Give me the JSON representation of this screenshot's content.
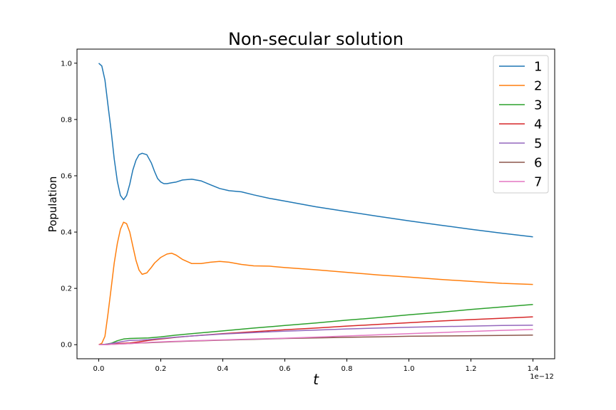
{
  "chart_data": {
    "type": "line",
    "title": "Non-secular solution",
    "xlabel": "t",
    "ylabel": "Population",
    "x_offset_text": "1e−12",
    "xlim": [
      -0.07,
      1.47
    ],
    "ylim": [
      -0.05,
      1.05
    ],
    "x_ticks": [
      0.0,
      0.2,
      0.4,
      0.6,
      0.8,
      1.0,
      1.2,
      1.4
    ],
    "x_tick_labels": [
      "0.0",
      "0.2",
      "0.4",
      "0.6",
      "0.8",
      "1.0",
      "1.2",
      "1.4"
    ],
    "y_ticks": [
      0.0,
      0.2,
      0.4,
      0.6,
      0.8,
      1.0
    ],
    "y_tick_labels": [
      "0.0",
      "0.2",
      "0.4",
      "0.6",
      "0.8",
      "1.0"
    ],
    "grid": false,
    "legend_position": "top-right",
    "series": [
      {
        "name": "1",
        "color": "#1f77b4",
        "x": [
          0.0,
          0.01,
          0.02,
          0.03,
          0.04,
          0.05,
          0.06,
          0.07,
          0.08,
          0.09,
          0.1,
          0.11,
          0.12,
          0.13,
          0.14,
          0.155,
          0.17,
          0.18,
          0.19,
          0.2,
          0.21,
          0.22,
          0.235,
          0.25,
          0.27,
          0.3,
          0.33,
          0.36,
          0.39,
          0.42,
          0.46,
          0.5,
          0.55,
          0.6,
          0.7,
          0.8,
          0.9,
          1.0,
          1.1,
          1.2,
          1.3,
          1.4
        ],
        "y": [
          1.0,
          0.99,
          0.94,
          0.85,
          0.76,
          0.66,
          0.58,
          0.53,
          0.515,
          0.53,
          0.57,
          0.62,
          0.655,
          0.675,
          0.68,
          0.675,
          0.645,
          0.615,
          0.59,
          0.578,
          0.572,
          0.572,
          0.575,
          0.578,
          0.585,
          0.588,
          0.582,
          0.568,
          0.555,
          0.547,
          0.543,
          0.532,
          0.52,
          0.51,
          0.49,
          0.473,
          0.456,
          0.44,
          0.425,
          0.41,
          0.396,
          0.383
        ]
      },
      {
        "name": "2",
        "color": "#ff7f0e",
        "x": [
          0.0,
          0.01,
          0.02,
          0.03,
          0.04,
          0.05,
          0.06,
          0.07,
          0.08,
          0.09,
          0.1,
          0.11,
          0.12,
          0.13,
          0.14,
          0.155,
          0.17,
          0.18,
          0.2,
          0.22,
          0.235,
          0.25,
          0.27,
          0.3,
          0.33,
          0.36,
          0.39,
          0.42,
          0.46,
          0.5,
          0.55,
          0.6,
          0.7,
          0.8,
          0.9,
          1.0,
          1.1,
          1.2,
          1.3,
          1.4
        ],
        "y": [
          0.0,
          0.005,
          0.03,
          0.11,
          0.2,
          0.29,
          0.36,
          0.41,
          0.435,
          0.43,
          0.4,
          0.35,
          0.3,
          0.265,
          0.25,
          0.255,
          0.275,
          0.29,
          0.31,
          0.322,
          0.325,
          0.318,
          0.303,
          0.288,
          0.288,
          0.293,
          0.296,
          0.293,
          0.285,
          0.28,
          0.279,
          0.274,
          0.266,
          0.257,
          0.248,
          0.24,
          0.232,
          0.225,
          0.218,
          0.214
        ]
      },
      {
        "name": "3",
        "color": "#2ca02c",
        "x": [
          0.0,
          0.02,
          0.04,
          0.06,
          0.08,
          0.1,
          0.13,
          0.16,
          0.2,
          0.25,
          0.3,
          0.4,
          0.5,
          0.6,
          0.7,
          0.8,
          0.9,
          1.0,
          1.1,
          1.2,
          1.3,
          1.4
        ],
        "y": [
          0.0,
          0.001,
          0.005,
          0.014,
          0.02,
          0.022,
          0.023,
          0.024,
          0.028,
          0.034,
          0.039,
          0.049,
          0.059,
          0.068,
          0.077,
          0.087,
          0.096,
          0.106,
          0.115,
          0.125,
          0.134,
          0.143
        ]
      },
      {
        "name": "4",
        "color": "#d62728",
        "x": [
          0.0,
          0.02,
          0.04,
          0.06,
          0.08,
          0.1,
          0.13,
          0.16,
          0.2,
          0.25,
          0.3,
          0.4,
          0.5,
          0.6,
          0.7,
          0.8,
          0.9,
          1.0,
          1.1,
          1.2,
          1.3,
          1.4
        ],
        "y": [
          0.0,
          0.0,
          0.002,
          0.004,
          0.005,
          0.006,
          0.01,
          0.015,
          0.02,
          0.026,
          0.031,
          0.039,
          0.046,
          0.053,
          0.059,
          0.066,
          0.072,
          0.078,
          0.084,
          0.089,
          0.094,
          0.099
        ]
      },
      {
        "name": "5",
        "color": "#9467bd",
        "x": [
          0.0,
          0.02,
          0.04,
          0.06,
          0.08,
          0.1,
          0.13,
          0.16,
          0.2,
          0.25,
          0.3,
          0.4,
          0.5,
          0.6,
          0.7,
          0.8,
          0.9,
          1.0,
          1.1,
          1.2,
          1.3,
          1.4
        ],
        "y": [
          0.0,
          0.001,
          0.004,
          0.008,
          0.012,
          0.015,
          0.016,
          0.018,
          0.022,
          0.027,
          0.031,
          0.038,
          0.043,
          0.048,
          0.052,
          0.056,
          0.059,
          0.062,
          0.064,
          0.066,
          0.068,
          0.069
        ]
      },
      {
        "name": "6",
        "color": "#8c564b",
        "x": [
          0.0,
          0.02,
          0.04,
          0.06,
          0.08,
          0.1,
          0.13,
          0.16,
          0.2,
          0.25,
          0.3,
          0.4,
          0.5,
          0.6,
          0.7,
          0.8,
          0.9,
          1.0,
          1.1,
          1.2,
          1.3,
          1.4
        ],
        "y": [
          0.0,
          0.0,
          0.001,
          0.002,
          0.003,
          0.004,
          0.006,
          0.007,
          0.009,
          0.011,
          0.013,
          0.016,
          0.019,
          0.022,
          0.024,
          0.026,
          0.028,
          0.03,
          0.031,
          0.032,
          0.033,
          0.034
        ]
      },
      {
        "name": "7",
        "color": "#e377c2",
        "x": [
          0.0,
          0.02,
          0.04,
          0.06,
          0.08,
          0.1,
          0.13,
          0.16,
          0.2,
          0.25,
          0.3,
          0.4,
          0.5,
          0.6,
          0.7,
          0.8,
          0.9,
          1.0,
          1.1,
          1.2,
          1.3,
          1.4
        ],
        "y": [
          0.0,
          0.0,
          0.001,
          0.002,
          0.003,
          0.004,
          0.006,
          0.008,
          0.01,
          0.012,
          0.014,
          0.017,
          0.02,
          0.023,
          0.027,
          0.031,
          0.035,
          0.039,
          0.043,
          0.047,
          0.051,
          0.054
        ]
      }
    ]
  }
}
